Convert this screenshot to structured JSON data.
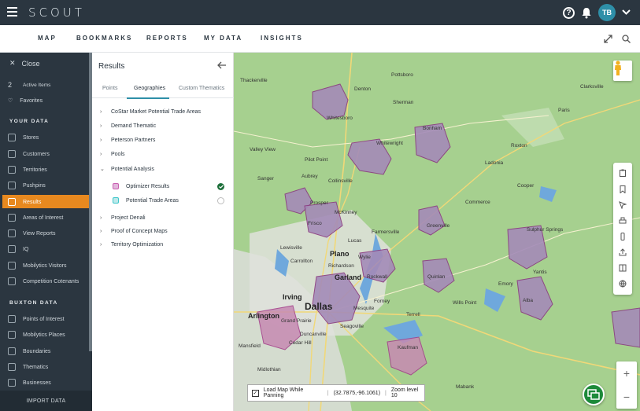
{
  "app": {
    "logo": "SCOUT",
    "avatar_initials": "TB"
  },
  "nav": {
    "items": [
      "MAP",
      "BOOKMARKS",
      "REPORTS",
      "MY DATA",
      "INSIGHTS"
    ]
  },
  "sidebar": {
    "close_label": "Close",
    "active_count": "2",
    "active_label": "Active Items",
    "favorites_label": "Favorites",
    "your_data_heading": "YOUR DATA",
    "your_data_items": [
      "Stores",
      "Customers",
      "Territories",
      "Pushpins",
      "Results",
      "Areas of Interest",
      "View Reports",
      "IQ",
      "Mobilytics Visitors",
      "Competition Cotenants"
    ],
    "buxton_heading": "BUXTON DATA",
    "buxton_items": [
      "Points of Interest",
      "Mobilytics Places",
      "Boundaries",
      "Thematics",
      "Businesses"
    ],
    "import_label": "IMPORT DATA"
  },
  "panel": {
    "title": "Results",
    "tabs": [
      "Points",
      "Geographies",
      "Custom Thematics"
    ],
    "tree": [
      "CoStar Market Potential Trade Areas",
      "Demand Thematic",
      "Peterson Partners",
      "Pools",
      "Potential Analysis",
      "Project Denali",
      "Proof of Concept Maps",
      "Territory Optimization"
    ],
    "sub_items": [
      "Optimizer Results",
      "Potential Trade Areas"
    ],
    "colors": {
      "optimizer": "#c85fb0",
      "trade": "#3cc6c9",
      "accent": "#e8891f",
      "check": "#1d6f3a"
    }
  },
  "map": {
    "labels": {
      "dallas": "Dallas",
      "irving": "Irving",
      "arlington": "Arlington",
      "garland": "Garland",
      "plano": "Plano",
      "mckinney": "McKinney",
      "frisco": "Frisco",
      "prosper": "Prosper",
      "denton": "Denton",
      "lewisville": "Lewisville",
      "carrollton": "Carrollton",
      "richardson": "Richardson",
      "rockwall": "Rockwall",
      "mesquite": "Mesquite",
      "terrell": "Terrell",
      "kaufman": "Kaufman",
      "greenville": "Greenville",
      "commerce": "Commerce",
      "sulphur": "Sulphur Springs",
      "bonham": "Bonham",
      "paris": "Paris",
      "whitewright": "Whitewright",
      "ladonia": "Ladonia",
      "quinlan": "Quinlan",
      "emory": "Emory",
      "alba": "Alba",
      "valleyview": "Valley View",
      "thackerville": "Thackerville",
      "whitesboro": "Whitesboro",
      "cooper": "Cooper",
      "yantis": "Yantis",
      "mabank": "Mabank",
      "midlothian": "Midlothian",
      "cedarhill": "Cedar Hill",
      "mansfield": "Mansfield",
      "grandprairie": "Grand Prairie",
      "duncanville": "Duncanville",
      "forney": "Forney",
      "seagoville": "Seagoville",
      "wills": "Wills Point",
      "farmersville": "Farmersville",
      "wylie": "Wylie",
      "lucas": "Lucas",
      "aubrey": "Aubrey",
      "pilotpoint": "Pilot Point",
      "sanger": "Sanger",
      "collinsville": "Collinsville",
      "sherman": "Sherman",
      "pottsboro": "Pottsboro",
      "roxton": "Roxton",
      "clarksville": "Clarksville"
    },
    "status": {
      "checkbox_label": "Load Map While Panning",
      "coords": "(32.7875,-96.1061)",
      "zoom": "Zoom level 10"
    }
  }
}
